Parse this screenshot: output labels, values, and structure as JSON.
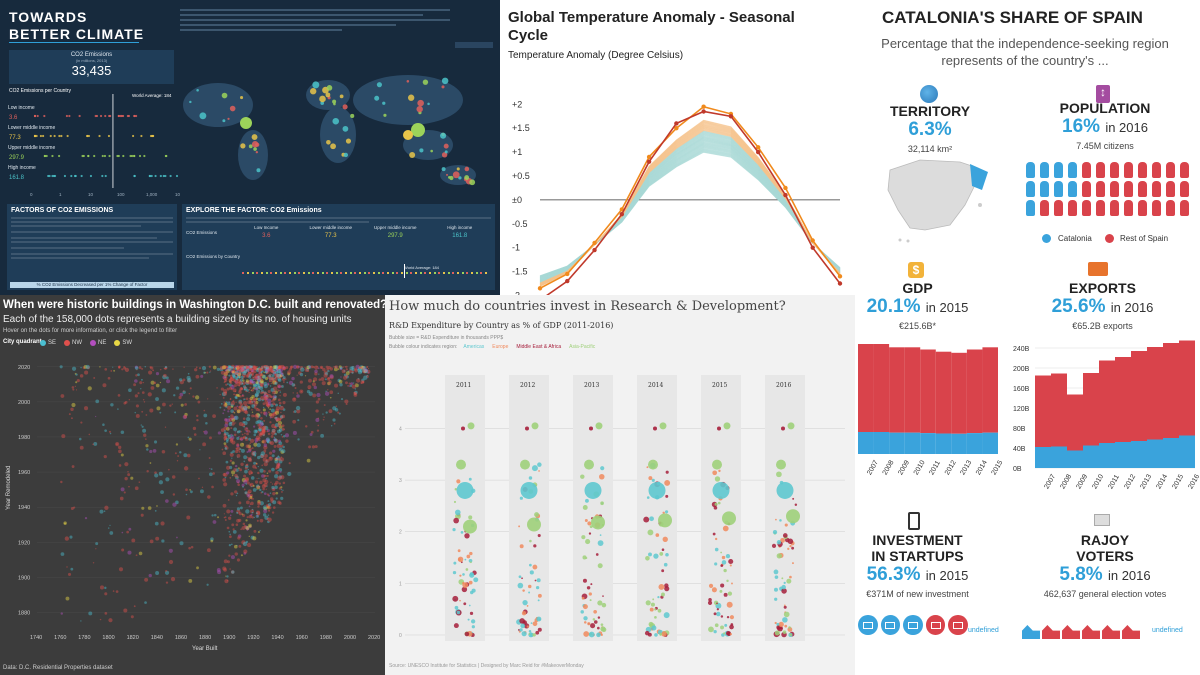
{
  "climate": {
    "title_line1": "TOWARDS",
    "title_line2": "BETTER CLIMATE",
    "kpi_label": "CO2 Emissions",
    "kpi_sub": "(in millions, 2013)",
    "kpi_value": "33,435",
    "per_country_title": "CO2 Emissions per Country",
    "world_average": "World Average: 184",
    "world_average_2": "World Average: 184",
    "groups": [
      {
        "label": "Low income",
        "value": "3.6",
        "color": "#e0605c"
      },
      {
        "label": "Lower middle income",
        "value": "77.3",
        "color": "#e8c44a"
      },
      {
        "label": "Upper middle income",
        "value": "297.9",
        "color": "#9cd35a"
      },
      {
        "label": "High income",
        "value": "161.8",
        "color": "#4bc3c9"
      }
    ],
    "x_ticks": [
      "0",
      "1",
      "10",
      "100",
      "1,000",
      "10,000"
    ],
    "factors_title": "FACTORS OF CO2 EMISSIONS",
    "explore_title": "EXPLORE THE FACTOR: CO2 Emissions",
    "explore_row_label": "CO2 Emissions",
    "explore_cols": [
      {
        "label": "Low Income",
        "value": "3.6"
      },
      {
        "label": "Lower middle income",
        "value": "77.3"
      },
      {
        "label": "Upper middle income",
        "value": "297.9"
      },
      {
        "label": "High income",
        "value": "161.8"
      }
    ],
    "by_country_title": "CO2 Emissions by Country",
    "decrease_bar": "% CO2 Emissions Decreased per 1% Change of Factor"
  },
  "temperature": {
    "title": "Global Temperature Anomaly - Seasonal Cycle",
    "subtitle": "Temperature Anomaly (Degree Celsius)",
    "y_ticks": [
      "+2",
      "+1.5",
      "+1",
      "+0.5",
      "±0",
      "-0.5",
      "-1",
      "-1.5",
      "-2"
    ]
  },
  "catalonia": {
    "title": "CATALONIA'S SHARE OF SPAIN",
    "subtitle": "Percentage that the independence-seeking region represents of the country's ...",
    "territory": {
      "label": "TERRITORY",
      "value": "6.3%",
      "detail": "32,114 km²"
    },
    "population": {
      "label": "POPULATION",
      "value": "16%",
      "year": "in 2016",
      "detail": "7.45M citizens"
    },
    "legend_catalonia": "Catalonia",
    "legend_rest": "Rest of Spain",
    "gdp": {
      "label": "GDP",
      "value": "20.1%",
      "year": "in 2015",
      "detail": "€215.6B*"
    },
    "exports": {
      "label": "EXPORTS",
      "value": "25.6%",
      "year": "in 2016",
      "detail": "€65.2B exports"
    },
    "export_y_ticks": [
      "240B",
      "200B",
      "160B",
      "120B",
      "80B",
      "40B",
      "0B"
    ],
    "startups": {
      "label1": "INVESTMENT",
      "label2": "IN STARTUPS",
      "value": "56.3%",
      "year": "in 2015",
      "detail": "€371M of new investment"
    },
    "voters": {
      "label1": "RAJOY",
      "label2": "VOTERS",
      "value": "5.8%",
      "year": "in 2016",
      "detail": "462,637 general election votes"
    },
    "undefined_label": "undefined",
    "colors": {
      "catalonia": "#3aa3dc",
      "rest": "#d9434b"
    }
  },
  "dc": {
    "title": "When were historic buildings in Washington D.C. built and renovated?",
    "subtitle": "Each of the 158,000 dots represents a building sized by its no. of housing units",
    "hint": "Hover on the dots for more information, or click the legend to filter",
    "legend_title": "City quadrant",
    "legend": [
      {
        "label": "SE",
        "color": "#4bbfd1"
      },
      {
        "label": "NW",
        "color": "#e0504c"
      },
      {
        "label": "NE",
        "color": "#b34fbf"
      },
      {
        "label": "SW",
        "color": "#e8d845"
      }
    ],
    "ylabel": "Year Remodeled",
    "xlabel": "Year Built",
    "source": "Data: D.C. Residential Properties dataset"
  },
  "rd": {
    "title": "How much do countries invest in Research & Development?",
    "subtitle": "R&D Expenditure by Country as % of GDP (2011-2016)",
    "note1": "Bubble size = R&D Expenditure in thousands PPP$",
    "note2_prefix": "Bubble colour indicates region:",
    "regions": [
      {
        "label": "Americas",
        "color": "#5ec8cf"
      },
      {
        "label": "Europe",
        "color": "#f08a5d"
      },
      {
        "label": "Middle East & Africa",
        "color": "#a61e3b"
      },
      {
        "label": "Asia-Pacific",
        "color": "#9fd07a"
      }
    ],
    "source": "Source: UNESCO Institute for Statistics | Designed by Marc Reid for #MakeoverMonday"
  },
  "chart_data": [
    {
      "type": "scatter",
      "title": "CO2 Emissions per Country",
      "xscale": "log",
      "categories": [
        "Low income",
        "Lower middle income",
        "Upper middle income",
        "High income"
      ],
      "series": [
        {
          "name": "Low income",
          "values": [
            3.6
          ]
        },
        {
          "name": "Lower middle income",
          "values": [
            77.3
          ]
        },
        {
          "name": "Upper middle income",
          "values": [
            297.9
          ]
        },
        {
          "name": "High income",
          "values": [
            161.8
          ]
        }
      ],
      "reference_line": 184
    },
    {
      "type": "line",
      "title": "Global Temperature Anomaly - Seasonal Cycle",
      "ylabel": "Temperature Anomaly (Degree Celsius)",
      "ylim": [
        -2.2,
        2.3
      ],
      "x": [
        1,
        2,
        3,
        4,
        5,
        6,
        7,
        8,
        9,
        10,
        11,
        12
      ],
      "series": [
        {
          "values": [
            -1.85,
            -1.55,
            -0.9,
            -0.2,
            0.9,
            1.5,
            1.95,
            1.8,
            1.1,
            0.25,
            -0.85,
            -1.6
          ]
        },
        {
          "values": [
            -2.1,
            -1.7,
            -1.05,
            -0.3,
            0.8,
            1.6,
            1.85,
            1.75,
            1.0,
            0.1,
            -1.0,
            -1.75
          ]
        }
      ]
    },
    {
      "type": "bar",
      "title": "GDP",
      "categories": [
        "2007",
        "2008",
        "2009",
        "2010",
        "2011",
        "2012",
        "2013",
        "2014",
        "2015"
      ],
      "series": [
        {
          "name": "Catalonia",
          "values": [
            0.2,
            0.2,
            0.2,
            0.2,
            0.2,
            0.2,
            0.2,
            0.2,
            0.2
          ]
        },
        {
          "name": "Rest of Spain",
          "values": [
            0.8,
            0.8,
            0.8,
            0.8,
            0.8,
            0.8,
            0.8,
            0.8,
            0.8
          ]
        }
      ],
      "totals": [
        1.0,
        1.0,
        0.97,
        0.97,
        0.95,
        0.93,
        0.92,
        0.95,
        0.97
      ]
    },
    {
      "type": "bar",
      "title": "EXPORTS",
      "categories": [
        "2007",
        "2008",
        "2009",
        "2010",
        "2011",
        "2012",
        "2013",
        "2014",
        "2015",
        "2016"
      ],
      "ylim": [
        0,
        240
      ],
      "series": [
        {
          "name": "Catalonia",
          "values": [
            42,
            43,
            35,
            45,
            50,
            52,
            54,
            57,
            60,
            65
          ]
        },
        {
          "name": "Rest of Spain",
          "values": [
            143,
            146,
            112,
            145,
            165,
            170,
            180,
            185,
            190,
            190
          ]
        }
      ]
    },
    {
      "type": "scatter",
      "title": "When were historic buildings in Washington D.C. built and renovated?",
      "xlabel": "Year Built",
      "ylabel": "Year Remodeled",
      "xlim": [
        1740,
        2020
      ],
      "ylim": [
        1870,
        2025
      ],
      "x_ticks": [
        1740,
        1760,
        1780,
        1800,
        1820,
        1840,
        1860,
        1880,
        1900,
        1920,
        1940,
        1960,
        1980,
        2000,
        2020
      ],
      "y_ticks": [
        1880,
        1900,
        1920,
        1940,
        1960,
        1980,
        2000,
        2020
      ]
    },
    {
      "type": "scatter",
      "title": "How much do countries invest in Research & Development?",
      "categories": [
        "2011",
        "2012",
        "2013",
        "2014",
        "2015",
        "2016"
      ],
      "y_ticks": [
        0,
        1,
        2,
        3,
        4
      ],
      "ylim": [
        0,
        4.3
      ]
    }
  ]
}
